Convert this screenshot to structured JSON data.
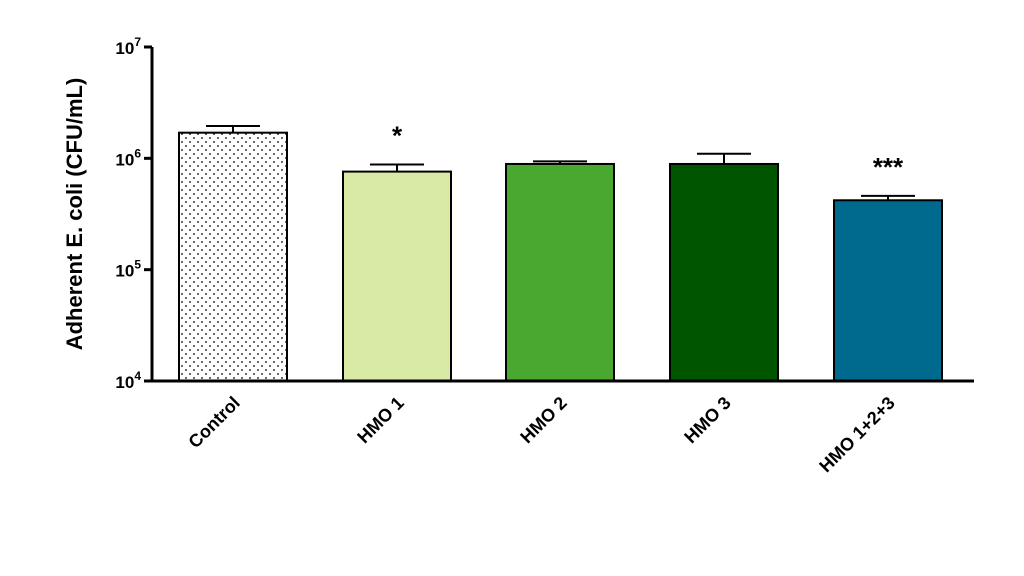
{
  "chart_data": {
    "type": "bar",
    "ylabel": "Adherent E. coli (CFU/mL)",
    "yscale": "log",
    "ylim": [
      10000,
      10000000
    ],
    "yticks": [
      {
        "base": "10",
        "exp": "4",
        "value": 10000
      },
      {
        "base": "10",
        "exp": "5",
        "value": 100000
      },
      {
        "base": "10",
        "exp": "6",
        "value": 1000000
      },
      {
        "base": "10",
        "exp": "7",
        "value": 10000000
      }
    ],
    "grid": false,
    "categories": [
      "Control",
      "HMO 1",
      "HMO 2",
      "HMO 3",
      "HMO 1+2+3"
    ],
    "values": [
      1700000,
      760000,
      890000,
      890000,
      420000
    ],
    "error_upper": [
      1950000,
      880000,
      940000,
      1100000,
      460000
    ],
    "annotations": [
      "",
      "*",
      "",
      "",
      "***"
    ],
    "bar_fills": [
      "dotted",
      "#d8eaa4",
      "#4aa72f",
      "#005600",
      "#006a8e"
    ]
  }
}
